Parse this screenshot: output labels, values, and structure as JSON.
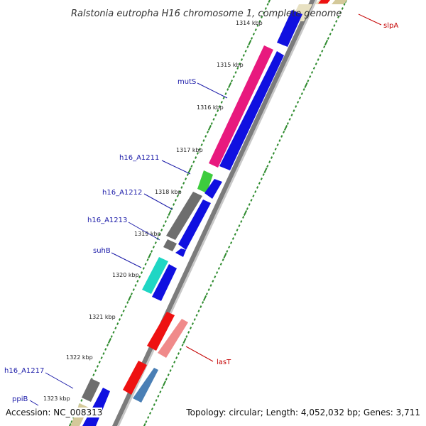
{
  "title": "Ralstonia eutropha H16 chromosome 1, complete genome",
  "accession_label": "Accession: NC_008313",
  "stats_label": "Topology: circular; Length: 4,052,032 bp; Genes: 3,711",
  "colors": {
    "backbone": "#8a8a8a",
    "tick_major": "#1f7a1f",
    "tick_minor": "#2e8b2e",
    "label_blue": "#1a1aa8",
    "label_red": "#c40000"
  },
  "ruler": {
    "ticks": [
      "1314 kbp",
      "1315 kbp",
      "1316 kbp",
      "1317 kbp",
      "1318 kbp",
      "1319 kbp",
      "1320 kbp",
      "1321 kbp",
      "1322 kbp",
      "1323 kbp"
    ]
  },
  "gene_labels": [
    {
      "text": "slpA",
      "color": "red"
    },
    {
      "text": "mutS",
      "color": "blue"
    },
    {
      "text": "h16_A1211",
      "color": "blue"
    },
    {
      "text": "h16_A1212",
      "color": "blue"
    },
    {
      "text": "h16_A1213",
      "color": "blue"
    },
    {
      "text": "suhB",
      "color": "blue"
    },
    {
      "text": "lasT",
      "color": "red"
    },
    {
      "text": "h16_A1217",
      "color": "blue"
    },
    {
      "text": "ppiB",
      "color": "blue"
    }
  ],
  "features": [
    {
      "ring": "function",
      "color": "#f0a0a0",
      "kind": "bar"
    },
    {
      "ring": "function",
      "color": "#d4c99a",
      "kind": "bar"
    },
    {
      "ring": "cds",
      "color": "#e8197e",
      "kind": "bar"
    },
    {
      "ring": "cds",
      "color": "#3dcc3d",
      "kind": "bar"
    },
    {
      "ring": "cds",
      "color": "#6e6e6e",
      "kind": "bar"
    },
    {
      "ring": "cds",
      "color": "#6e6e6e",
      "kind": "bar"
    },
    {
      "ring": "cds",
      "color": "#1fd6c4",
      "kind": "bar"
    },
    {
      "ring": "cds",
      "color": "#ee1111",
      "kind": "arrow"
    },
    {
      "ring": "cds",
      "color": "#ee1111",
      "kind": "arrow"
    },
    {
      "ring": "cds",
      "color": "#6e6e6e",
      "kind": "bar"
    },
    {
      "ring": "cds",
      "color": "#d4c99a",
      "kind": "bar"
    },
    {
      "ring": "gene",
      "color": "#1010e0",
      "kind": "arrow"
    },
    {
      "ring": "gene",
      "color": "#f08a8a",
      "kind": "bar"
    },
    {
      "ring": "gene",
      "color": "#4a7fb5",
      "kind": "bar"
    }
  ]
}
